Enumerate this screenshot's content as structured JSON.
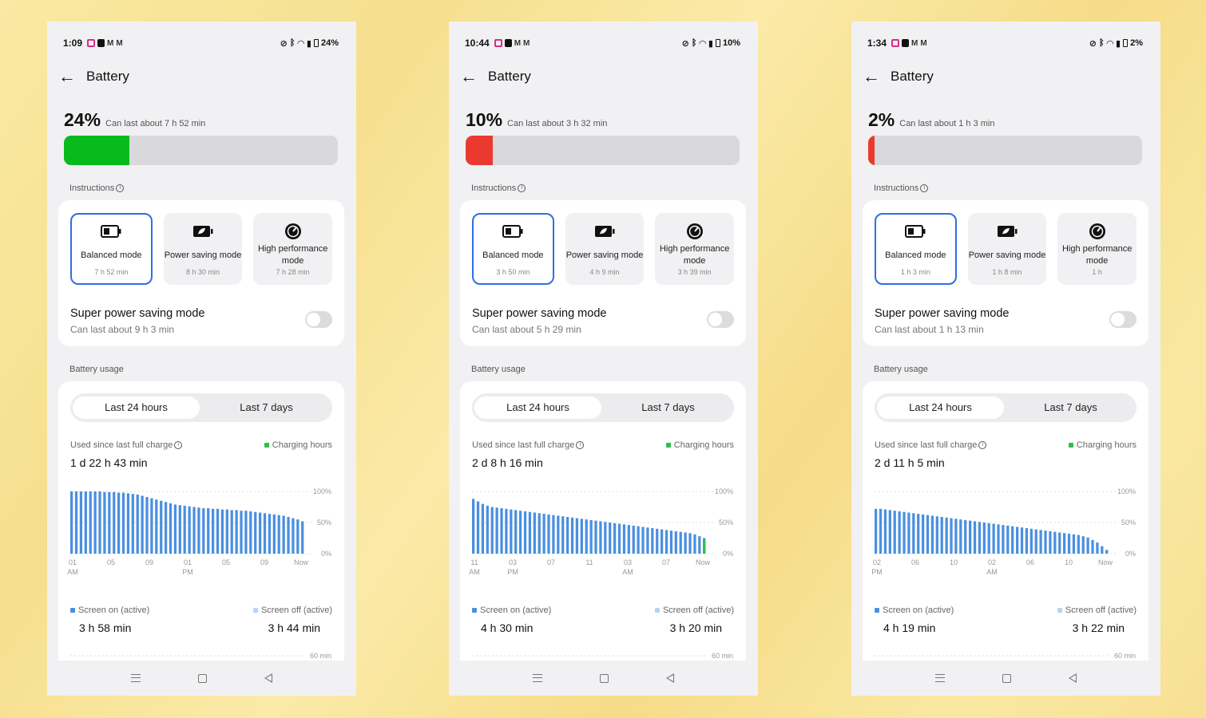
{
  "colors": {
    "accent": "#2d6ee8",
    "screen_on": "#4a8fe0",
    "screen_off": "#b7d4f5",
    "charging": "#2fbf4c"
  },
  "common": {
    "title": "Battery",
    "instructions_label": "Instructions",
    "modes": [
      "Balanced mode",
      "Power saving mode",
      "High performance mode"
    ],
    "super_label": "Super power saving mode",
    "usage_label": "Battery usage",
    "tab_24h": "Last 24 hours",
    "tab_7d": "Last 7 days",
    "used_since": "Used since last full charge",
    "charging_hours": "Charging hours",
    "screen_on": "Screen on (active)",
    "screen_off": "Screen off (active)",
    "y_labels": [
      "100%",
      "50%",
      "0%"
    ],
    "mini_label": "60 min"
  },
  "phones": [
    {
      "time": "1:09",
      "battery_text": "24%",
      "percent": "24%",
      "percent_value": 24,
      "bar_color": "#08bb1c",
      "can_last": "Can last about 7 h 52 min",
      "mode_times": [
        "7 h 52 min",
        "8 h 30 min",
        "7 h 28 min"
      ],
      "super_last": "Can last about 9 h 3 min",
      "used_value": "1 d 22 h 43 min",
      "x_ticks": [
        [
          "01",
          "AM"
        ],
        [
          "05",
          ""
        ],
        [
          "09",
          ""
        ],
        [
          "01",
          "PM"
        ],
        [
          "05",
          ""
        ],
        [
          "09",
          ""
        ],
        [
          "Now",
          ""
        ]
      ],
      "screen_on_val": "3 h 58 min",
      "screen_off_val": "3 h 44 min",
      "chart_data": {
        "type": "bar",
        "series": [
          {
            "name": "Screen on (active)",
            "values": [
              100,
              100,
              100,
              100,
              100,
              100,
              100,
              99,
              99,
              99,
              98,
              98,
              97,
              96,
              95,
              93,
              91,
              89,
              87,
              85,
              83,
              81,
              79,
              78,
              77,
              76,
              75,
              74,
              73,
              73,
              72,
              72,
              71,
              71,
              70,
              70,
              69,
              69,
              68,
              67,
              66,
              65,
              64,
              63,
              62,
              61,
              59,
              57,
              55,
              52
            ]
          }
        ],
        "ylim": [
          0,
          100
        ],
        "x_tick_labels": [
          "01 AM",
          "05",
          "09",
          "01 PM",
          "05",
          "09",
          "Now"
        ]
      }
    },
    {
      "time": "10:44",
      "battery_text": "10%",
      "percent": "10%",
      "percent_value": 10,
      "bar_color": "#ea3a2f",
      "can_last": "Can last about 3 h 32 min",
      "mode_times": [
        "3 h 50 min",
        "4 h 9 min",
        "3 h 39 min"
      ],
      "super_last": "Can last about 5 h 29 min",
      "used_value": "2 d 8 h 16 min",
      "x_ticks": [
        [
          "11",
          "AM"
        ],
        [
          "03",
          "PM"
        ],
        [
          "07",
          ""
        ],
        [
          "11",
          ""
        ],
        [
          "03",
          "AM"
        ],
        [
          "07",
          ""
        ],
        [
          "Now",
          ""
        ]
      ],
      "screen_on_val": "4 h 30 min",
      "screen_off_val": "3 h 20 min",
      "chart_data": {
        "type": "bar",
        "series": [
          {
            "name": "Screen on (active)",
            "values": [
              88,
              84,
              80,
              77,
              75,
              74,
              73,
              72,
              71,
              70,
              69,
              68,
              67,
              66,
              65,
              64,
              63,
              62,
              61,
              60,
              59,
              58,
              57,
              56,
              55,
              54,
              53,
              52,
              51,
              50,
              49,
              48,
              47,
              46,
              45,
              44,
              43,
              42,
              41,
              40,
              39,
              38,
              37,
              36,
              35,
              34,
              33,
              31,
              28,
              25
            ]
          },
          {
            "name": "Charging hours",
            "values": [
              0,
              0,
              0,
              0,
              0,
              0,
              0,
              0,
              0,
              0,
              0,
              0,
              0,
              0,
              0,
              0,
              0,
              0,
              0,
              0,
              0,
              0,
              0,
              0,
              0,
              0,
              0,
              0,
              0,
              0,
              0,
              0,
              0,
              0,
              0,
              0,
              0,
              0,
              0,
              0,
              0,
              0,
              0,
              0,
              0,
              0,
              0,
              0,
              0,
              22
            ]
          }
        ],
        "ylim": [
          0,
          100
        ],
        "x_tick_labels": [
          "11 AM",
          "03 PM",
          "07",
          "11",
          "03 AM",
          "07",
          "Now"
        ]
      }
    },
    {
      "time": "1:34",
      "battery_text": "2%",
      "percent": "2%",
      "percent_value": 2,
      "bar_color": "#ea3a2f",
      "can_last": "Can last about 1 h 3 min",
      "mode_times": [
        "1 h 3 min",
        "1 h 8 min",
        "1 h"
      ],
      "super_last": "Can last about 1 h 13 min",
      "used_value": "2 d 11 h 5 min",
      "x_ticks": [
        [
          "02",
          "PM"
        ],
        [
          "06",
          ""
        ],
        [
          "10",
          ""
        ],
        [
          "02",
          "AM"
        ],
        [
          "06",
          ""
        ],
        [
          "10",
          ""
        ],
        [
          "Now",
          ""
        ]
      ],
      "screen_on_val": "4 h 19 min",
      "screen_off_val": "3 h 22 min",
      "chart_data": {
        "type": "bar",
        "series": [
          {
            "name": "Screen on (active)",
            "values": [
              72,
              72,
              71,
              70,
              69,
              68,
              67,
              66,
              65,
              64,
              63,
              62,
              61,
              60,
              59,
              58,
              57,
              56,
              55,
              54,
              53,
              52,
              51,
              50,
              49,
              48,
              47,
              46,
              45,
              44,
              43,
              42,
              41,
              40,
              39,
              38,
              37,
              36,
              35,
              34,
              33,
              32,
              31,
              30,
              28,
              26,
              22,
              18,
              12,
              6
            ]
          }
        ],
        "ylim": [
          0,
          100
        ],
        "x_tick_labels": [
          "02 PM",
          "06",
          "10",
          "02 AM",
          "06",
          "10",
          "Now"
        ]
      }
    }
  ]
}
